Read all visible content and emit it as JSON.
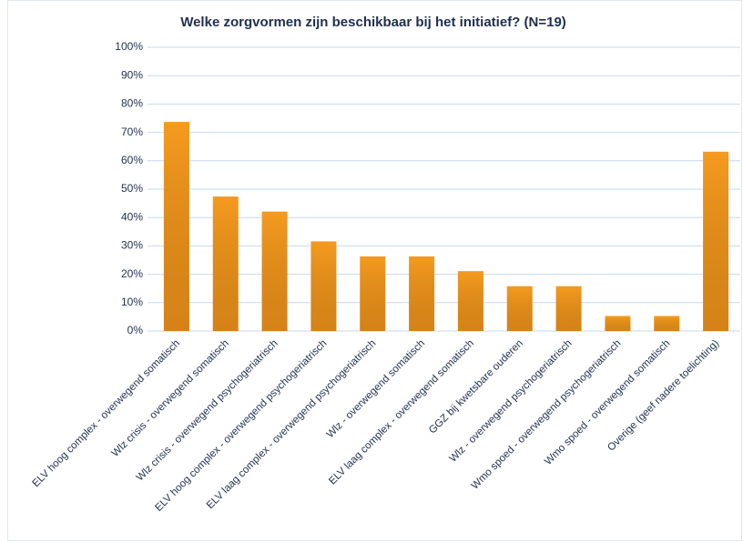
{
  "chart_data": {
    "type": "bar",
    "title": "Welke zorgvormen zijn beschikbaar bij het initiatief? (N=19)",
    "categories": [
      "ELV hoog complex - overwegend somatisch",
      "Wlz crisis - overwegend somatisch",
      "Wlz crisis - overwegend psychogeriatrisch",
      "ELV hoog complex - overwegend psychogeriatrisch",
      "ELV laag complex - overwegend psychogeriatrisch",
      "Wlz - overwegend somatisch",
      "ELV laag complex - overwegend somatisch",
      "GGZ bij kwetsbare ouderen",
      "Wlz - overwegend psychogeriatrisch",
      "Wmo spoed - overwegend psychogeriatrisch",
      "Wmo spoed - overwegend somatisch",
      "Overige (geef nadere toelichting)"
    ],
    "values": [
      73.7,
      47.4,
      42.1,
      31.6,
      26.3,
      26.3,
      21.1,
      15.8,
      15.8,
      5.3,
      5.3,
      63.2
    ],
    "color": "#f59a1e",
    "ylim": [
      0,
      100
    ],
    "yticks": [
      {
        "value": 0,
        "label": "0%"
      },
      {
        "value": 10,
        "label": "10%"
      },
      {
        "value": 20,
        "label": "20%"
      },
      {
        "value": 30,
        "label": "30%"
      },
      {
        "value": 40,
        "label": "40%"
      },
      {
        "value": 50,
        "label": "50%"
      },
      {
        "value": 60,
        "label": "60%"
      },
      {
        "value": 70,
        "label": "70%"
      },
      {
        "value": 80,
        "label": "80%"
      },
      {
        "value": 90,
        "label": "90%"
      },
      {
        "value": 100,
        "label": "100%"
      }
    ],
    "grid": true
  }
}
